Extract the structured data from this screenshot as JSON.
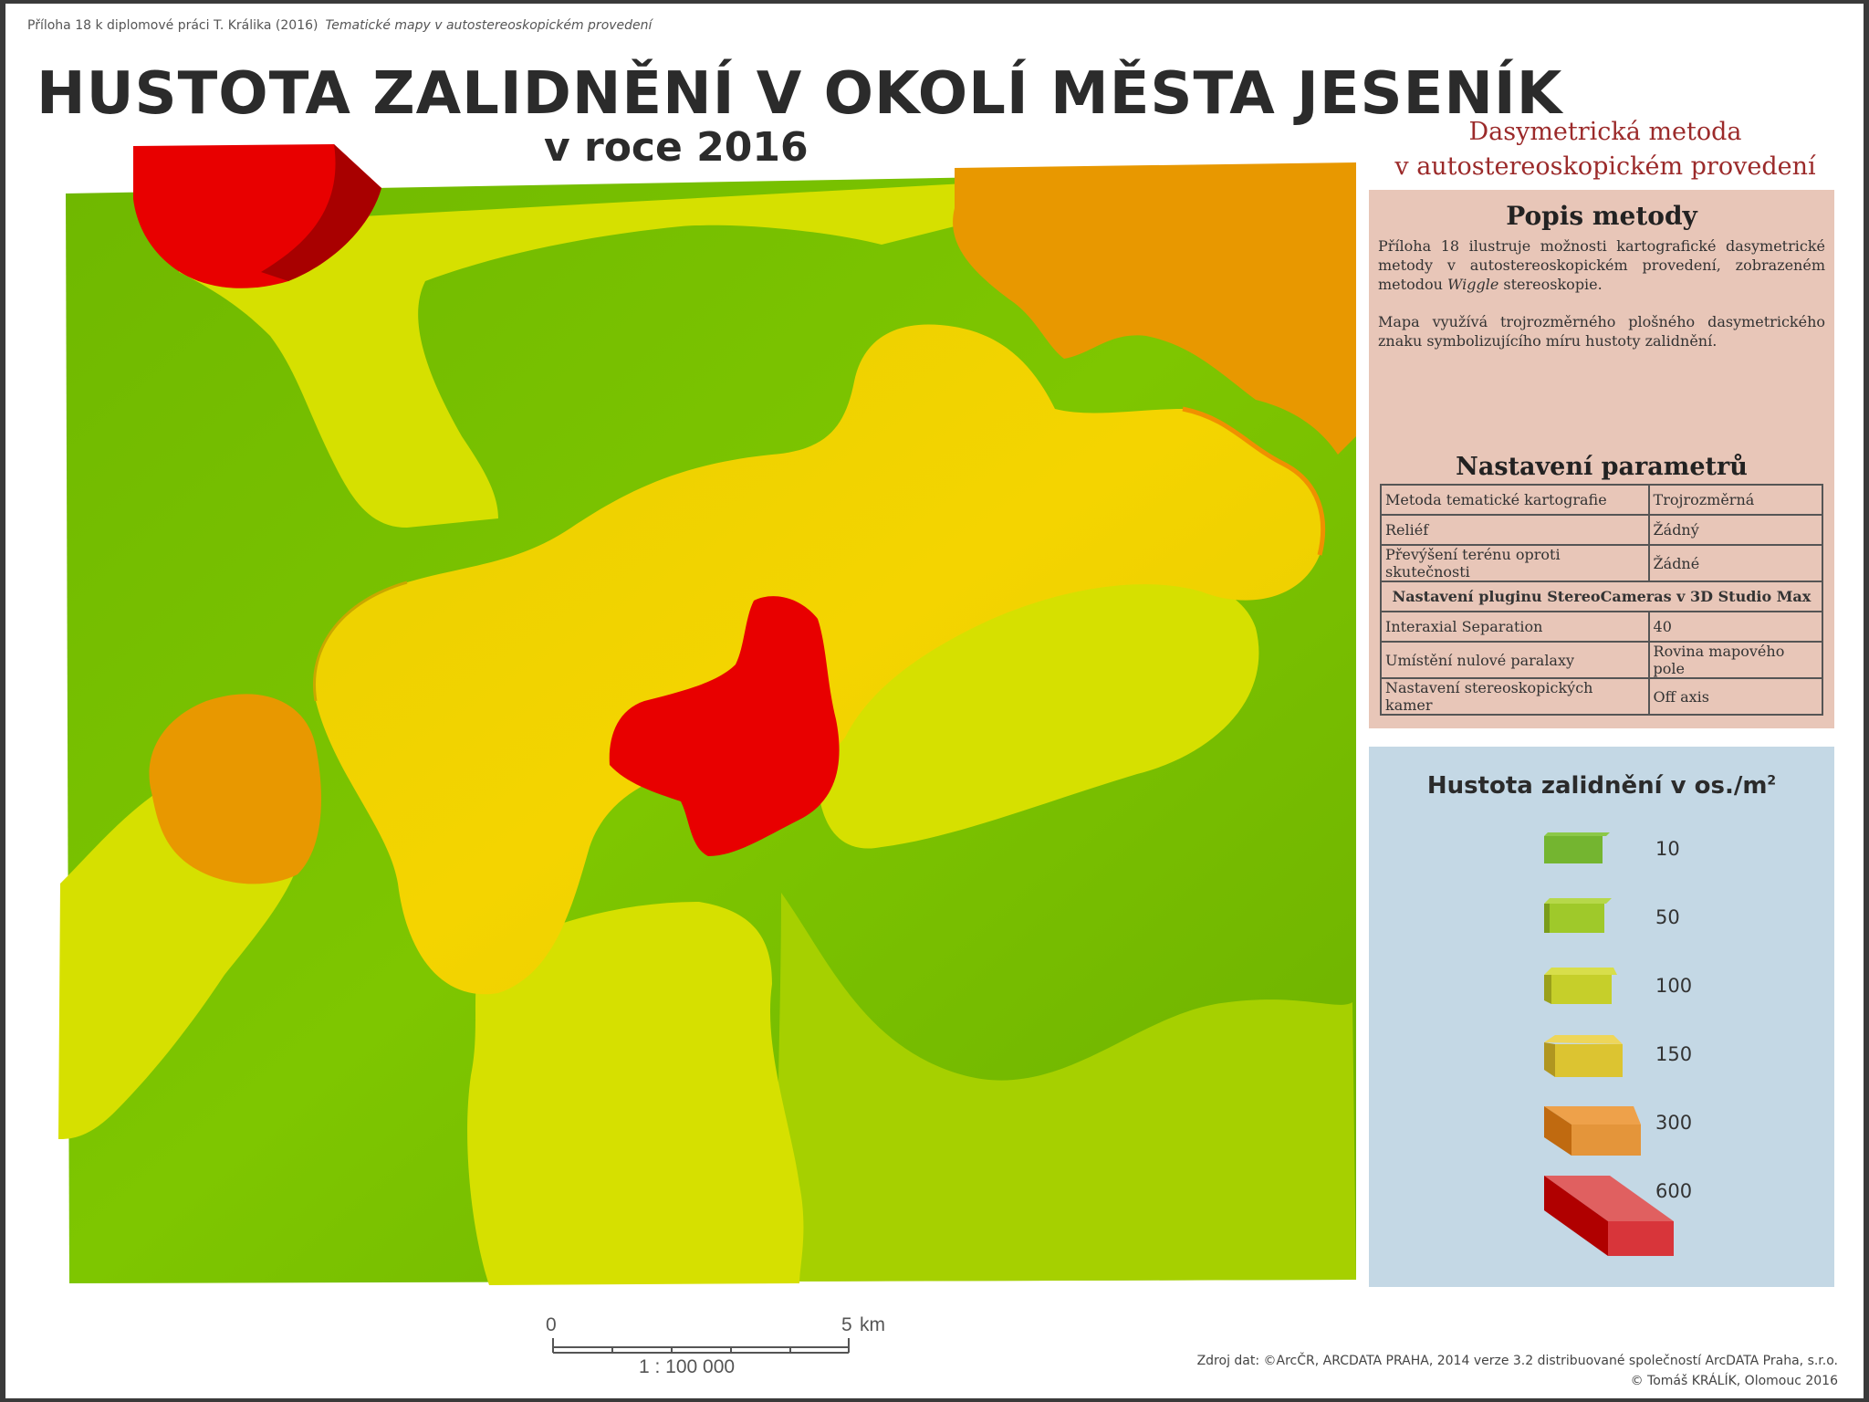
{
  "header": {
    "note": "Příloha 18 k diplomové práci T. Králika (2016)",
    "note_italic": "Tematické mapy v autostereoskopickém provedení"
  },
  "title": "HUSTOTA ZALIDNĚNÍ V OKOLÍ MĚSTA JESENÍK",
  "subtitle": "v roce 2016",
  "method_heading": {
    "line1": "Dasymetrická metoda",
    "line2": "v autostereoskopickém provedení"
  },
  "description": {
    "title": "Popis metody",
    "p1_before": "Příloha 18 ilustruje možnosti kartografické dasymetrické metody v autostereoskopickém provedení, zobrazeném metodou ",
    "p1_italic": "Wiggle",
    "p1_after": " stereoskopie.",
    "p2": "Mapa využívá trojrozměrného plošného dasymetrického znaku symbolizujícího míru hustoty zalidnění."
  },
  "parameters": {
    "title": "Nastavení parametrů",
    "rows": [
      [
        "Metoda tematické kartografie",
        "Trojrozměrná"
      ],
      [
        "Reliéf",
        "Žádný"
      ],
      [
        "Převýšení terénu oproti skutečnosti",
        "Žádné"
      ]
    ],
    "plugin_header": "Nastavení pluginu StereoCameras v 3D Studio Max",
    "plugin_rows": [
      [
        "Interaxial Separation",
        "40"
      ],
      [
        "Umístění nulové paralaxy",
        "Rovina mapového pole"
      ],
      [
        "Nastavení stereoskopických kamer",
        "Off axis"
      ]
    ]
  },
  "legend": {
    "title": "Hustota zalidnění v os./m",
    "superscript": "2",
    "classes": [
      {
        "label": "10",
        "color": "#74b530"
      },
      {
        "label": "50",
        "color": "#9fc92a"
      },
      {
        "label": "100",
        "color": "#c6cf2a"
      },
      {
        "label": "150",
        "color": "#dcc431"
      },
      {
        "label": "300",
        "color": "#e4953a"
      },
      {
        "label": "600",
        "color": "#d8353a"
      }
    ]
  },
  "map_colors": {
    "green": "#78c200",
    "yellow_green": "#a6d000",
    "yellow": "#d6e000",
    "gold": "#ecd000",
    "orange": "#e89800",
    "red": "#e80000"
  },
  "scale_bar": {
    "start": "0",
    "end": "5",
    "unit": "km",
    "ratio": "1 : 100 000"
  },
  "source": {
    "line1": "Zdroj dat: ©ArcČR, ARCDATA PRAHA, 2014 verze 3.2 distribuované společností ArcDATA Praha, s.r.o.",
    "line2": "© Tomáš KRÁLÍK, Olomouc 2016"
  }
}
